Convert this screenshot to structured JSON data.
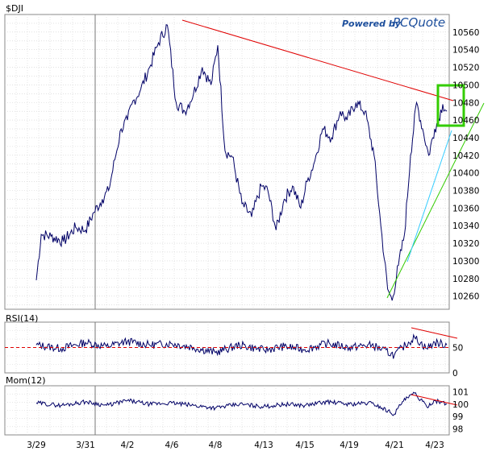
{
  "chart_data": [
    {
      "type": "line",
      "title": "$DJI",
      "brand": {
        "prefix": "Powered by",
        "name": "PCQuote"
      },
      "x_ticks": [
        "3/29",
        "3/31",
        "4/2",
        "4/6",
        "4/8",
        "4/13",
        "4/15",
        "4/19",
        "4/21",
        "4/23"
      ],
      "y_ticks": [
        10260,
        10280,
        10300,
        10320,
        10340,
        10360,
        10380,
        10400,
        10420,
        10440,
        10460,
        10480,
        10500,
        10520,
        10540,
        10560
      ],
      "ylim": [
        10245,
        10580
      ],
      "grid": true,
      "series": [
        {
          "x": [
            0,
            0.1,
            0.3,
            0.55,
            0.8,
            1.0,
            1.2,
            1.4,
            1.55,
            1.7,
            1.85,
            2.0,
            2.1,
            2.3,
            2.5,
            2.7,
            2.9,
            3.1,
            3.3,
            3.5,
            3.7,
            3.9,
            4.05,
            4.2,
            4.35,
            4.55,
            4.75,
            4.95,
            5.1,
            5.3,
            5.5,
            5.7,
            5.9,
            6.05,
            6.2,
            6.4,
            6.6,
            6.8,
            6.95,
            7.15,
            7.35,
            7.55,
            7.7,
            7.85,
            7.95,
            8.1,
            8.25,
            8.4,
            8.55,
            8.7,
            8.85,
            9.0,
            9.1,
            9.2,
            9.3
          ],
          "values": [
            10278,
            10330,
            10328,
            10322,
            10338,
            10335,
            10355,
            10370,
            10380,
            10415,
            10450,
            10460,
            10478,
            10495,
            10520,
            10548,
            10568,
            10480,
            10470,
            10490,
            10520,
            10500,
            10545,
            10425,
            10418,
            10365,
            10350,
            10385,
            10380,
            10335,
            10370,
            10385,
            10360,
            10390,
            10410,
            10450,
            10440,
            10470,
            10460,
            10480,
            10470,
            10420,
            10340,
            10268,
            10255,
            10295,
            10330,
            10420,
            10480,
            10450,
            10420,
            10450,
            10462,
            10478,
            10470
          ]
        }
      ],
      "overlays": {
        "resistance_color": "#e00000",
        "support_color": "#33cc00",
        "fast_support_color": "#33ccff",
        "highlight_color": "#33cc00",
        "price_color": "#000066"
      }
    },
    {
      "type": "line",
      "title": "RSI(14)",
      "y_ticks": [
        0,
        50
      ],
      "ylim": [
        0,
        100
      ],
      "reference_line": 50,
      "series": [
        {
          "x": [
            0,
            0.5,
            1.0,
            1.5,
            2.0,
            2.5,
            3.0,
            3.5,
            4.0,
            4.5,
            5.0,
            5.5,
            6.0,
            6.5,
            7.0,
            7.5,
            8.0,
            8.2,
            8.5,
            8.8,
            9.0,
            9.3
          ],
          "values": [
            55,
            48,
            60,
            52,
            62,
            55,
            58,
            50,
            40,
            55,
            45,
            52,
            46,
            58,
            50,
            55,
            35,
            50,
            70,
            48,
            60,
            55
          ]
        }
      ]
    },
    {
      "type": "line",
      "title": "Mom(12)",
      "y_ticks": [
        98,
        99,
        100,
        101
      ],
      "ylim": [
        97.5,
        101.5
      ],
      "series": [
        {
          "x": [
            0,
            0.5,
            1.0,
            1.5,
            2.0,
            2.5,
            3.0,
            3.5,
            4.0,
            4.5,
            5.0,
            5.5,
            6.0,
            6.5,
            7.0,
            7.5,
            8.0,
            8.2,
            8.5,
            8.8,
            9.0,
            9.3
          ],
          "values": [
            100.1,
            99.9,
            100.2,
            99.9,
            100.3,
            100.0,
            100.1,
            99.9,
            99.7,
            100.0,
            99.8,
            100.0,
            99.9,
            100.2,
            100.0,
            100.1,
            99.2,
            100.2,
            100.9,
            99.8,
            100.3,
            100.0
          ]
        }
      ]
    }
  ]
}
